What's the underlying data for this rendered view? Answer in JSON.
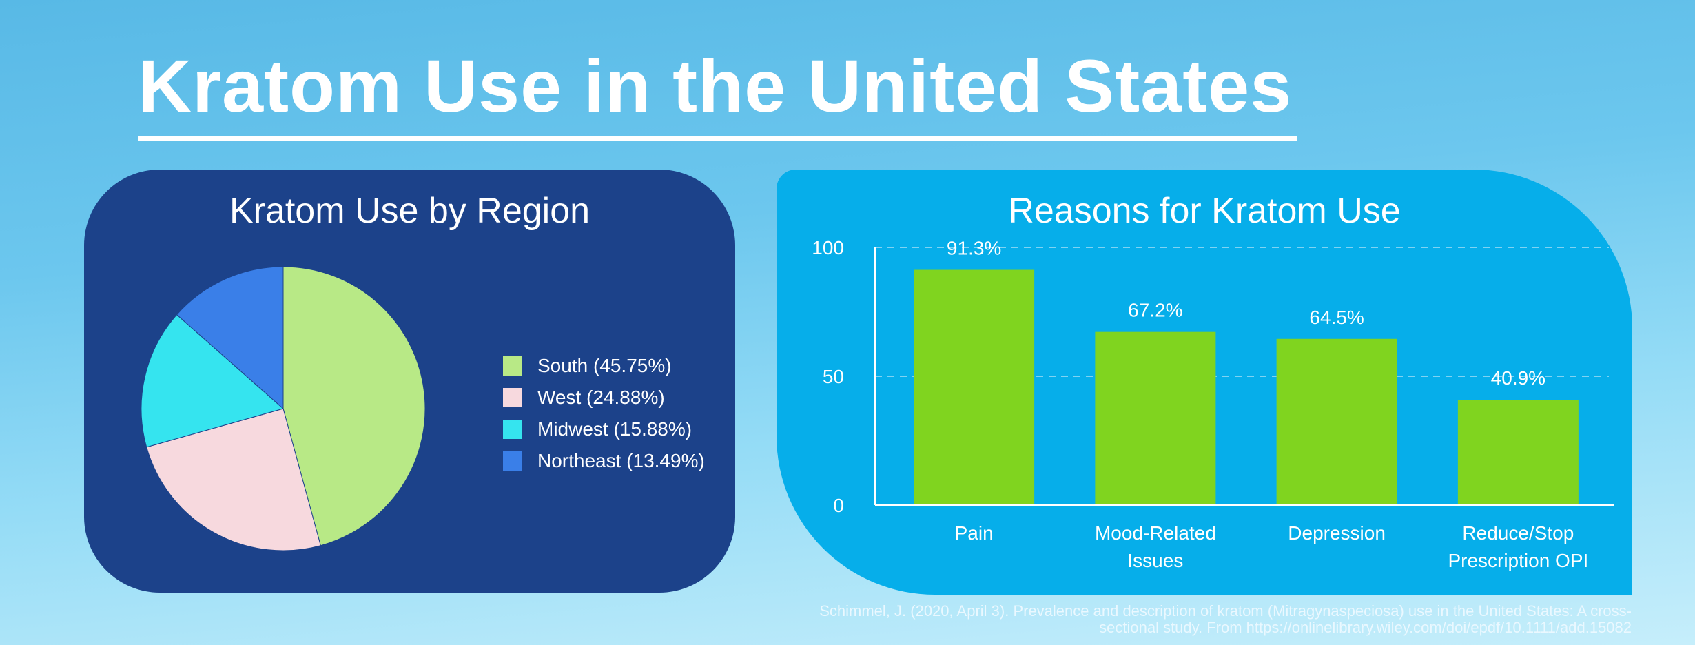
{
  "title": "Kratom Use in the United States",
  "citation": "Schimmel, J. (2020, April 3). Prevalence and description of kratom (Mitragynaspeciosa) use in the United States: A cross-sectional study. From https://onlinelibrary.wiley.com/doi/epdf/10.1111/add.15082",
  "chart_data": [
    {
      "type": "pie",
      "title": "Kratom Use by Region",
      "legend_position": "right",
      "slices": [
        {
          "label": "South (45.75%)",
          "value": 45.75,
          "color": "#b8e986"
        },
        {
          "label": "West (24.88%)",
          "value": 24.88,
          "color": "#f7d9de"
        },
        {
          "label": "Midwest (15.88%)",
          "value": 15.88,
          "color": "#35e4ef"
        },
        {
          "label": "Northeast (13.49%)",
          "value": 13.49,
          "color": "#3a7fe8"
        }
      ]
    },
    {
      "type": "bar",
      "title": "Reasons for Kratom Use",
      "categories": [
        [
          "Pain"
        ],
        [
          "Mood-Related",
          "Issues"
        ],
        [
          "Depression"
        ],
        [
          "Reduce/Stop",
          "Prescription OPI"
        ]
      ],
      "values": [
        91.3,
        67.2,
        64.5,
        40.9
      ],
      "data_labels": [
        "91.3%",
        "67.2%",
        "64.5%",
        "40.9%"
      ],
      "ylim": [
        0,
        100
      ],
      "yticks": [
        "0",
        "50",
        "100"
      ],
      "grid": true,
      "bar_color": "#80d41f"
    }
  ]
}
